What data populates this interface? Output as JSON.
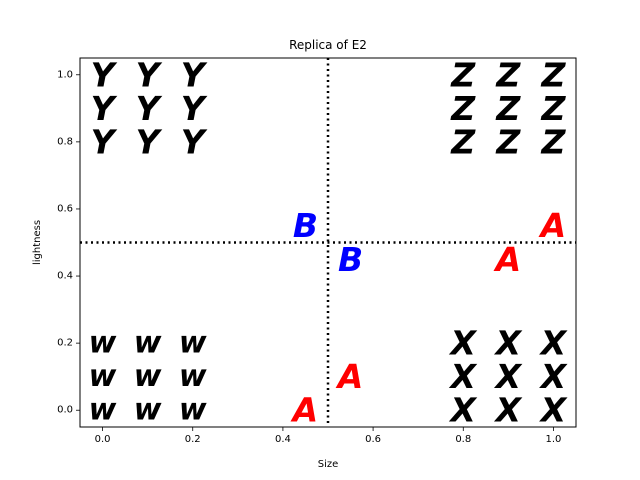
{
  "chart_data": {
    "type": "scatter",
    "title": "Replica of E2",
    "xlabel": "Size",
    "ylabel": "lightness",
    "xlim": [
      -0.05,
      1.05
    ],
    "ylim": [
      -0.05,
      1.05
    ],
    "xticks": [
      "0.0",
      "0.2",
      "0.4",
      "0.6",
      "0.8",
      "1.0"
    ],
    "yticks": [
      "0.0",
      "0.2",
      "0.4",
      "0.6",
      "0.8",
      "1.0"
    ],
    "grid": false,
    "reference_lines": [
      {
        "orientation": "vertical",
        "value": 0.5,
        "style": "dotted",
        "color": "#000000"
      },
      {
        "orientation": "horizontal",
        "value": 0.5,
        "style": "dotted",
        "color": "#000000"
      }
    ],
    "points": [
      {
        "x": 0.0,
        "y": 1.0,
        "label": "Y",
        "color": "#000000"
      },
      {
        "x": 0.1,
        "y": 1.0,
        "label": "Y",
        "color": "#000000"
      },
      {
        "x": 0.2,
        "y": 1.0,
        "label": "Y",
        "color": "#000000"
      },
      {
        "x": 0.0,
        "y": 0.9,
        "label": "Y",
        "color": "#000000"
      },
      {
        "x": 0.1,
        "y": 0.9,
        "label": "Y",
        "color": "#000000"
      },
      {
        "x": 0.2,
        "y": 0.9,
        "label": "Y",
        "color": "#000000"
      },
      {
        "x": 0.0,
        "y": 0.8,
        "label": "Y",
        "color": "#000000"
      },
      {
        "x": 0.1,
        "y": 0.8,
        "label": "Y",
        "color": "#000000"
      },
      {
        "x": 0.2,
        "y": 0.8,
        "label": "Y",
        "color": "#000000"
      },
      {
        "x": 0.8,
        "y": 1.0,
        "label": "Z",
        "color": "#000000"
      },
      {
        "x": 0.9,
        "y": 1.0,
        "label": "Z",
        "color": "#000000"
      },
      {
        "x": 1.0,
        "y": 1.0,
        "label": "Z",
        "color": "#000000"
      },
      {
        "x": 0.8,
        "y": 0.9,
        "label": "Z",
        "color": "#000000"
      },
      {
        "x": 0.9,
        "y": 0.9,
        "label": "Z",
        "color": "#000000"
      },
      {
        "x": 1.0,
        "y": 0.9,
        "label": "Z",
        "color": "#000000"
      },
      {
        "x": 0.8,
        "y": 0.8,
        "label": "Z",
        "color": "#000000"
      },
      {
        "x": 0.9,
        "y": 0.8,
        "label": "Z",
        "color": "#000000"
      },
      {
        "x": 1.0,
        "y": 0.8,
        "label": "Z",
        "color": "#000000"
      },
      {
        "x": 0.0,
        "y": 0.2,
        "label": "w",
        "color": "#000000"
      },
      {
        "x": 0.1,
        "y": 0.2,
        "label": "w",
        "color": "#000000"
      },
      {
        "x": 0.2,
        "y": 0.2,
        "label": "w",
        "color": "#000000"
      },
      {
        "x": 0.0,
        "y": 0.1,
        "label": "w",
        "color": "#000000"
      },
      {
        "x": 0.1,
        "y": 0.1,
        "label": "w",
        "color": "#000000"
      },
      {
        "x": 0.2,
        "y": 0.1,
        "label": "w",
        "color": "#000000"
      },
      {
        "x": 0.0,
        "y": 0.0,
        "label": "w",
        "color": "#000000"
      },
      {
        "x": 0.1,
        "y": 0.0,
        "label": "w",
        "color": "#000000"
      },
      {
        "x": 0.2,
        "y": 0.0,
        "label": "w",
        "color": "#000000"
      },
      {
        "x": 0.8,
        "y": 0.2,
        "label": "X",
        "color": "#000000"
      },
      {
        "x": 0.9,
        "y": 0.2,
        "label": "X",
        "color": "#000000"
      },
      {
        "x": 1.0,
        "y": 0.2,
        "label": "X",
        "color": "#000000"
      },
      {
        "x": 0.8,
        "y": 0.1,
        "label": "X",
        "color": "#000000"
      },
      {
        "x": 0.9,
        "y": 0.1,
        "label": "X",
        "color": "#000000"
      },
      {
        "x": 1.0,
        "y": 0.1,
        "label": "X",
        "color": "#000000"
      },
      {
        "x": 0.8,
        "y": 0.0,
        "label": "X",
        "color": "#000000"
      },
      {
        "x": 0.9,
        "y": 0.0,
        "label": "X",
        "color": "#000000"
      },
      {
        "x": 1.0,
        "y": 0.0,
        "label": "X",
        "color": "#000000"
      },
      {
        "x": 0.45,
        "y": 0.55,
        "label": "B",
        "color": "#0000ff"
      },
      {
        "x": 0.55,
        "y": 0.45,
        "label": "B",
        "color": "#0000ff"
      },
      {
        "x": 1.0,
        "y": 0.55,
        "label": "A",
        "color": "#ff0000"
      },
      {
        "x": 0.9,
        "y": 0.45,
        "label": "A",
        "color": "#ff0000"
      },
      {
        "x": 0.55,
        "y": 0.1,
        "label": "A",
        "color": "#ff0000"
      },
      {
        "x": 0.45,
        "y": 0.0,
        "label": "A",
        "color": "#ff0000"
      }
    ]
  }
}
